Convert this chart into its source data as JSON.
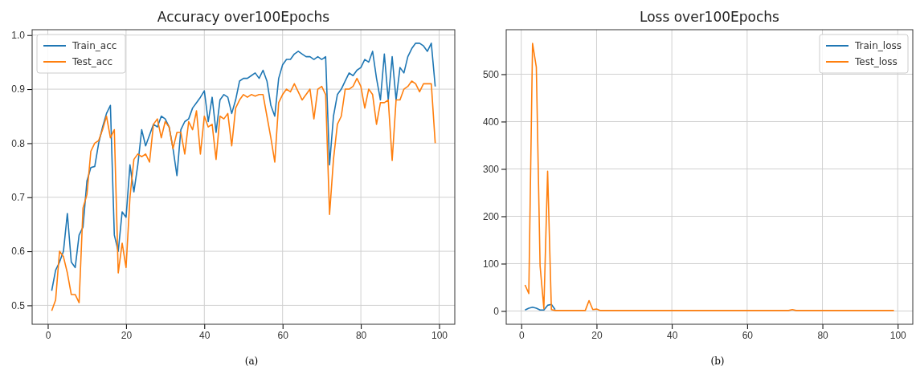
{
  "chart_data": [
    {
      "type": "line",
      "title": "Accuracy over100Epochs",
      "annotations": [
        "(a)"
      ],
      "legend": "top left",
      "grid": true,
      "x": [
        1,
        2,
        3,
        4,
        5,
        6,
        7,
        8,
        9,
        10,
        11,
        12,
        13,
        14,
        15,
        16,
        17,
        18,
        19,
        20,
        21,
        22,
        23,
        24,
        25,
        26,
        27,
        28,
        29,
        30,
        31,
        32,
        33,
        34,
        35,
        36,
        37,
        38,
        39,
        40,
        41,
        42,
        43,
        44,
        45,
        46,
        47,
        48,
        49,
        50,
        51,
        52,
        53,
        54,
        55,
        56,
        57,
        58,
        59,
        60,
        61,
        62,
        63,
        64,
        65,
        66,
        67,
        68,
        69,
        70,
        71,
        72,
        73,
        74,
        75,
        76,
        77,
        78,
        79,
        80,
        81,
        82,
        83,
        84,
        85,
        86,
        87,
        88,
        89,
        90,
        91,
        92,
        93,
        94,
        95,
        96,
        97,
        98,
        99
      ],
      "xlim": [
        -4,
        104
      ],
      "xticks": [
        0,
        20,
        40,
        60,
        80,
        100
      ],
      "ylim": [
        0.465,
        1.01
      ],
      "yticks": [
        {
          "value": 0.5,
          "label": "0.5"
        },
        {
          "value": 0.6,
          "label": "0.6"
        },
        {
          "value": 0.7,
          "label": "0.7"
        },
        {
          "value": 0.8,
          "label": "0.8"
        },
        {
          "value": 0.9,
          "label": "0.9"
        },
        {
          "value": 1.0,
          "label": "1.0"
        }
      ],
      "series": [
        {
          "name": "Train_acc",
          "color": "#1f77b4",
          "values": [
            0.527,
            0.565,
            0.58,
            0.6,
            0.67,
            0.58,
            0.57,
            0.63,
            0.645,
            0.73,
            0.755,
            0.757,
            0.8,
            0.83,
            0.855,
            0.87,
            0.63,
            0.6,
            0.673,
            0.663,
            0.76,
            0.71,
            0.76,
            0.825,
            0.795,
            0.815,
            0.835,
            0.83,
            0.85,
            0.845,
            0.83,
            0.79,
            0.74,
            0.825,
            0.84,
            0.845,
            0.865,
            0.875,
            0.885,
            0.897,
            0.84,
            0.885,
            0.82,
            0.88,
            0.89,
            0.885,
            0.855,
            0.88,
            0.915,
            0.92,
            0.92,
            0.925,
            0.93,
            0.92,
            0.935,
            0.915,
            0.87,
            0.85,
            0.92,
            0.945,
            0.955,
            0.955,
            0.965,
            0.97,
            0.965,
            0.96,
            0.96,
            0.955,
            0.96,
            0.955,
            0.96,
            0.76,
            0.85,
            0.89,
            0.9,
            0.915,
            0.93,
            0.925,
            0.935,
            0.94,
            0.955,
            0.95,
            0.97,
            0.92,
            0.88,
            0.965,
            0.88,
            0.96,
            0.88,
            0.94,
            0.93,
            0.96,
            0.975,
            0.985,
            0.985,
            0.98,
            0.97,
            0.985,
            0.905
          ]
        },
        {
          "name": "Test_acc",
          "color": "#ff7f0e",
          "values": [
            0.49,
            0.51,
            0.6,
            0.59,
            0.56,
            0.52,
            0.52,
            0.505,
            0.68,
            0.705,
            0.785,
            0.8,
            0.805,
            0.825,
            0.85,
            0.81,
            0.825,
            0.56,
            0.615,
            0.57,
            0.7,
            0.77,
            0.78,
            0.775,
            0.78,
            0.765,
            0.835,
            0.845,
            0.81,
            0.84,
            0.83,
            0.79,
            0.82,
            0.82,
            0.78,
            0.84,
            0.825,
            0.86,
            0.78,
            0.85,
            0.83,
            0.835,
            0.77,
            0.85,
            0.845,
            0.855,
            0.795,
            0.865,
            0.88,
            0.89,
            0.885,
            0.89,
            0.887,
            0.89,
            0.89,
            0.85,
            0.81,
            0.765,
            0.875,
            0.89,
            0.9,
            0.895,
            0.91,
            0.895,
            0.88,
            0.89,
            0.9,
            0.845,
            0.9,
            0.905,
            0.89,
            0.668,
            0.77,
            0.835,
            0.85,
            0.9,
            0.9,
            0.905,
            0.92,
            0.905,
            0.865,
            0.9,
            0.89,
            0.835,
            0.875,
            0.875,
            0.88,
            0.768,
            0.88,
            0.88,
            0.9,
            0.905,
            0.915,
            0.91,
            0.895,
            0.91,
            0.91,
            0.91,
            0.8
          ]
        }
      ]
    },
    {
      "type": "line",
      "title": "Loss over100Epochs",
      "annotations": [
        "(b)"
      ],
      "legend": "top right",
      "grid": true,
      "x": [
        1,
        2,
        3,
        4,
        5,
        6,
        7,
        8,
        9,
        10,
        11,
        12,
        13,
        14,
        15,
        16,
        17,
        18,
        19,
        20,
        21,
        22,
        23,
        24,
        25,
        26,
        27,
        28,
        29,
        30,
        31,
        32,
        33,
        34,
        35,
        36,
        37,
        38,
        39,
        40,
        41,
        42,
        43,
        44,
        45,
        46,
        47,
        48,
        49,
        50,
        51,
        52,
        53,
        54,
        55,
        56,
        57,
        58,
        59,
        60,
        61,
        62,
        63,
        64,
        65,
        66,
        67,
        68,
        69,
        70,
        71,
        72,
        73,
        74,
        75,
        76,
        77,
        78,
        79,
        80,
        81,
        82,
        83,
        84,
        85,
        86,
        87,
        88,
        89,
        90,
        91,
        92,
        93,
        94,
        95,
        96,
        97,
        98,
        99
      ],
      "xlim": [
        -4,
        104
      ],
      "xticks": [
        0,
        20,
        40,
        60,
        80,
        100
      ],
      "ylim": [
        -28,
        594
      ],
      "yticks": [
        0,
        100,
        200,
        300,
        400,
        500
      ],
      "series": [
        {
          "name": "Train_loss",
          "color": "#1f77b4",
          "values": [
            2,
            6,
            8,
            6,
            2,
            2,
            12,
            14,
            3,
            null,
            null,
            null,
            null,
            null,
            null,
            null,
            null,
            null,
            null,
            null,
            null,
            null,
            null,
            null,
            null,
            null,
            null,
            null,
            null,
            null,
            null,
            null,
            null,
            null,
            null,
            null,
            null,
            null,
            null,
            null,
            null,
            null,
            null,
            null,
            null,
            null,
            null,
            null,
            null,
            null,
            null,
            null,
            null,
            null,
            null,
            null,
            null,
            null,
            null,
            null,
            null,
            null,
            null,
            null,
            null,
            null,
            null,
            null,
            null,
            null,
            null,
            null,
            null,
            null,
            null,
            null,
            null,
            null,
            null,
            null,
            null,
            null,
            null,
            null,
            null,
            null,
            null,
            null,
            null,
            null,
            null,
            null,
            null,
            null,
            null,
            null,
            null,
            null,
            null
          ]
        },
        {
          "name": "Test_loss",
          "color": "#ff7f0e",
          "values": [
            55,
            37,
            565,
            515,
            95,
            5,
            295,
            3,
            1,
            1,
            1,
            1,
            1,
            1,
            1,
            1,
            1,
            22,
            3,
            4,
            1,
            1,
            1,
            1,
            1,
            1,
            1,
            1,
            1,
            1,
            1,
            1,
            1,
            1,
            1,
            1,
            1,
            1,
            1,
            1,
            1,
            1,
            1,
            1,
            1,
            1,
            1,
            1,
            1,
            1,
            1,
            1,
            1,
            1,
            1,
            1,
            1,
            1,
            1,
            1,
            1,
            1,
            1,
            1,
            1,
            1,
            1,
            1,
            1,
            1,
            1,
            3,
            1,
            1,
            1,
            1,
            1,
            1,
            1,
            1,
            1,
            1,
            1,
            1,
            1,
            1,
            1,
            1,
            1,
            1,
            1,
            1,
            1,
            1,
            1,
            1,
            1,
            1,
            1
          ]
        }
      ]
    }
  ]
}
